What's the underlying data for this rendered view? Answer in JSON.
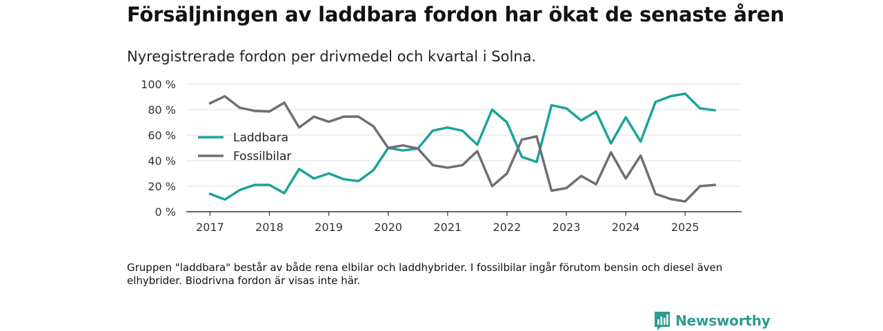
{
  "title": "Försäljningen av laddbara fordon har ökat de senaste åren",
  "subtitle": "Nyregistrerade fordon per drivmedel och kvartal i Solna.",
  "footnote": "Gruppen \"laddbara\" består av både rena elbilar och laddhybrider. I fossilbilar ingår förutom bensin och diesel även elhybrider. Biodrivna fordon är visas inte här.",
  "brand": {
    "name": "Newsworthy",
    "color": "#2b9c91"
  },
  "chart_data": {
    "type": "line",
    "title": "Försäljningen av laddbara fordon har ökat de senaste åren",
    "subtitle": "Nyregistrerade fordon per drivmedel och kvartal i Solna.",
    "xlabel": "",
    "ylabel": "",
    "x_start": 2017,
    "x_step": 0.25,
    "xlim": [
      2016.6,
      2025.95
    ],
    "ylim": [
      0,
      100
    ],
    "y_ticks": [
      0,
      20,
      40,
      60,
      80,
      100
    ],
    "y_tick_labels": [
      "0 %",
      "20 %",
      "40 %",
      "60 %",
      "80 %",
      "100 %"
    ],
    "x_ticks": [
      2017,
      2018,
      2019,
      2020,
      2021,
      2022,
      2023,
      2024,
      2025
    ],
    "x_tick_labels": [
      "2017",
      "2018",
      "2019",
      "2020",
      "2021",
      "2022",
      "2023",
      "2024",
      "2025"
    ],
    "grid": true,
    "legend_position": "left",
    "series": [
      {
        "name": "Laddbara",
        "color": "#1aa39a",
        "values": [
          14,
          9.5,
          17,
          21,
          21,
          14.5,
          33.5,
          26,
          30,
          25.5,
          24,
          32.5,
          50,
          48,
          49.5,
          63.5,
          66,
          63.5,
          52.5,
          80,
          70,
          43,
          39,
          83.5,
          81,
          71.5,
          78.5,
          53.5,
          74,
          55,
          86,
          90.5,
          92.5,
          81,
          79.5
        ]
      },
      {
        "name": "Fossilbilar",
        "color": "#6e6e73",
        "values": [
          85,
          90.5,
          81.5,
          79,
          78.5,
          85.5,
          66,
          74.5,
          70.5,
          74.5,
          74.5,
          67,
          50,
          52,
          49.5,
          36.5,
          34.5,
          36.5,
          47.5,
          20,
          30,
          56.5,
          59,
          16.5,
          18.5,
          28,
          21.5,
          46.5,
          26,
          44,
          14,
          10,
          8,
          20,
          21
        ]
      }
    ]
  }
}
